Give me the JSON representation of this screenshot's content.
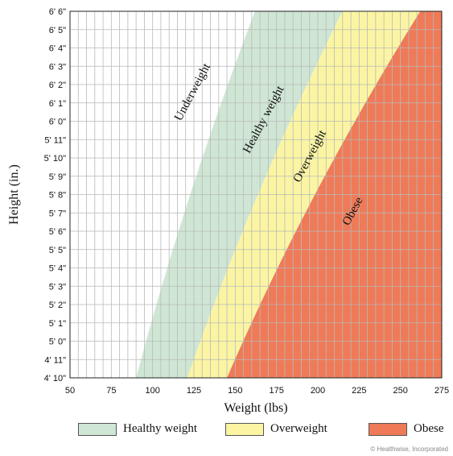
{
  "chart_data": {
    "type": "area",
    "xlabel": "Weight (lbs)",
    "ylabel": "Height (in.)",
    "xlim": [
      50,
      275
    ],
    "ylim": [
      58,
      78
    ],
    "x_ticks": [
      50,
      75,
      100,
      125,
      150,
      175,
      200,
      225,
      250,
      275
    ],
    "x_minor_step": 5,
    "y_ticks": [
      {
        "value": 58,
        "label": "4' 10\""
      },
      {
        "value": 59,
        "label": "4' 11\""
      },
      {
        "value": 60,
        "label": "5' 0\""
      },
      {
        "value": 61,
        "label": "5' 1\""
      },
      {
        "value": 62,
        "label": "5' 2\""
      },
      {
        "value": 63,
        "label": "5' 3\""
      },
      {
        "value": 64,
        "label": "5' 4\""
      },
      {
        "value": 65,
        "label": "5' 5\""
      },
      {
        "value": 66,
        "label": "5' 6\""
      },
      {
        "value": 67,
        "label": "5' 7\""
      },
      {
        "value": 68,
        "label": "5' 8\""
      },
      {
        "value": 69,
        "label": "5' 9\""
      },
      {
        "value": 70,
        "label": "5' 10\""
      },
      {
        "value": 71,
        "label": "5' 11\""
      },
      {
        "value": 72,
        "label": "6' 0\""
      },
      {
        "value": 73,
        "label": "6' 1\""
      },
      {
        "value": 74,
        "label": "6' 2\""
      },
      {
        "value": 75,
        "label": "6' 3\""
      },
      {
        "value": 76,
        "label": "6' 4\""
      },
      {
        "value": 77,
        "label": "6' 5\""
      },
      {
        "value": 78,
        "label": "6' 6\""
      }
    ],
    "grid": true,
    "boundaries": {
      "heights": [
        58,
        78
      ],
      "healthy_min": [
        90,
        162
      ],
      "overweight_min": [
        121,
        215
      ],
      "obese_min": [
        145,
        262
      ]
    },
    "regions": [
      {
        "name": "Underweight",
        "from": null,
        "to": "healthy_min",
        "color": "#ffffff",
        "label": "Underweight",
        "label_at": [
          126,
          73.5
        ]
      },
      {
        "name": "Healthy weight",
        "from": "healthy_min",
        "to": "overweight_min",
        "color": "#cfe6d4",
        "label": "Healthy weight",
        "label_at": [
          169,
          72
        ]
      },
      {
        "name": "Overweight",
        "from": "overweight_min",
        "to": "obese_min",
        "color": "#fbf5a3",
        "label": "Overweight",
        "label_at": [
          197,
          70
        ]
      },
      {
        "name": "Obese",
        "from": "obese_min",
        "to": null,
        "color": "#ef7a58",
        "label": "Obese",
        "label_at": [
          223,
          67
        ]
      }
    ]
  },
  "legend": [
    {
      "label": "Healthy weight",
      "color": "#cfe6d4"
    },
    {
      "label": "Overweight",
      "color": "#fbf5a3"
    },
    {
      "label": "Obese",
      "color": "#ef7a58"
    }
  ],
  "credit": "© Healthwise, Incorporated"
}
